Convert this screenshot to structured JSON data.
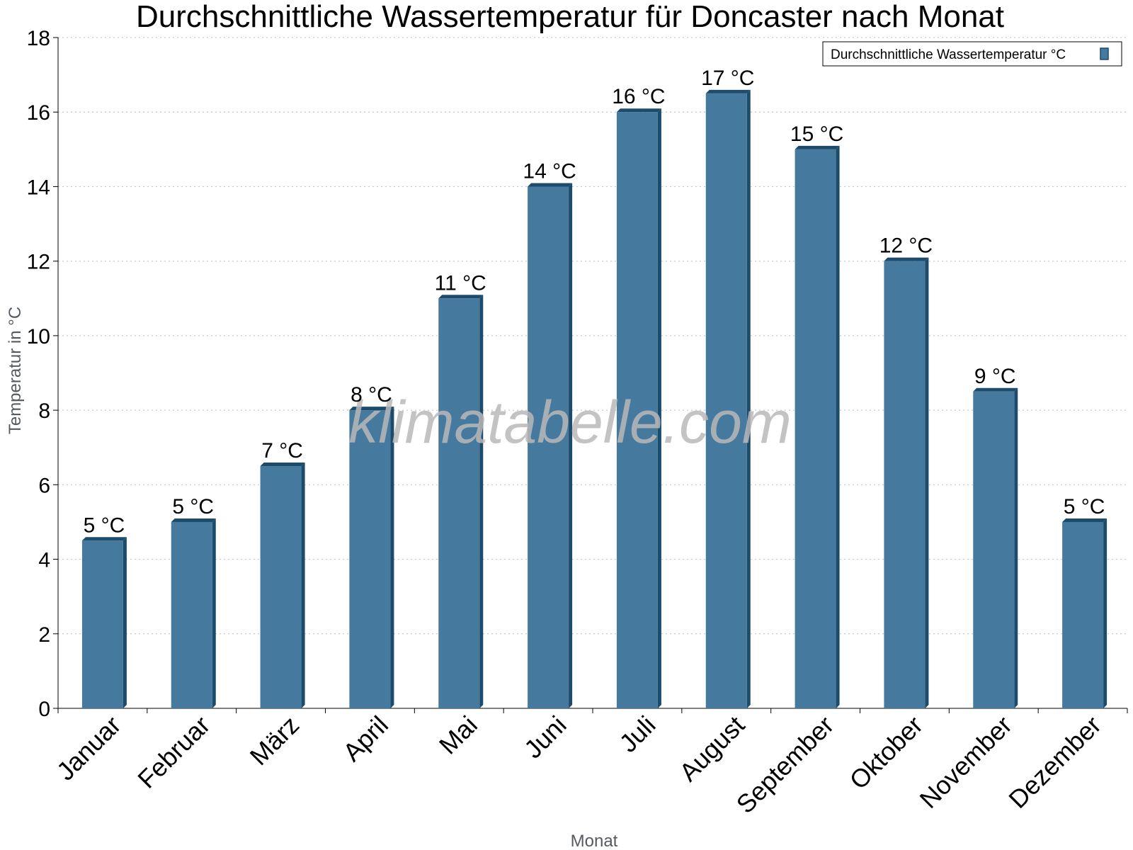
{
  "chart_data": {
    "type": "bar",
    "title": "Durchschnittliche Wassertemperatur für Doncaster nach Monat",
    "xlabel": "Monat",
    "ylabel": "Temperatur in °C",
    "categories": [
      "Januar",
      "Februar",
      "März",
      "April",
      "Mai",
      "Juni",
      "Juli",
      "August",
      "September",
      "Oktober",
      "November",
      "Dezember"
    ],
    "series": [
      {
        "name": "Durchschnittliche Wassertemperatur °C",
        "values": [
          4.5,
          5,
          6.5,
          8,
          11,
          14,
          16,
          16.5,
          15,
          12,
          8.5,
          5
        ],
        "labels": [
          "5 °C",
          "5 °C",
          "7 °C",
          "8 °C",
          "11 °C",
          "14 °C",
          "16 °C",
          "17 °C",
          "15 °C",
          "12 °C",
          "9 °C",
          "5 °C"
        ],
        "color": "#457a9e",
        "shade_color": "#1d4b6b"
      }
    ],
    "ylim": [
      0,
      18
    ],
    "yticks": [
      0,
      2,
      4,
      6,
      8,
      10,
      12,
      14,
      16,
      18
    ],
    "grid": true,
    "legend_position": "top-right",
    "watermark": "klimatabelle.com"
  }
}
